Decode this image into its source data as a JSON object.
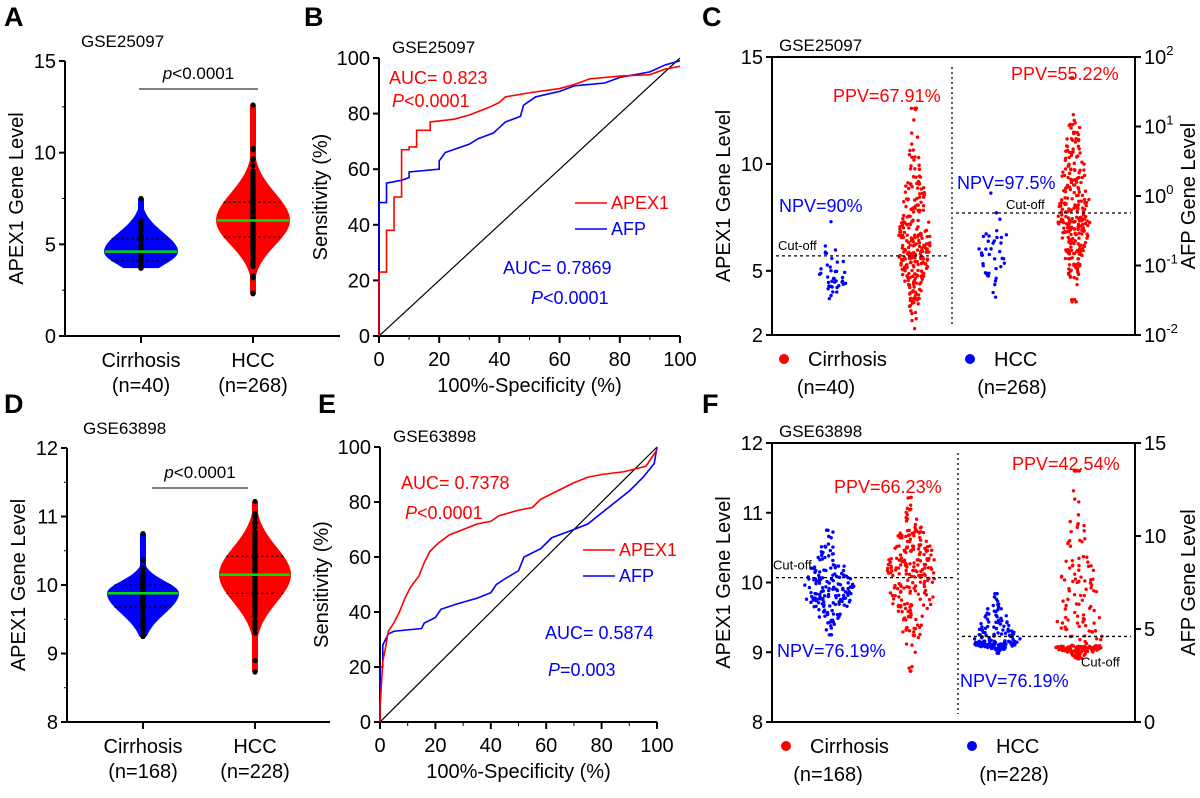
{
  "colors": {
    "red": "#ff0000",
    "blue": "#0000ff",
    "median": "#00e000",
    "black": "#000000"
  },
  "chart_data": [
    {
      "panel": "A",
      "type": "violin",
      "title": "GSE25097",
      "ylabel": "APEX1 Gene Level",
      "ylim": [
        0,
        15
      ],
      "yticks": [
        0,
        5,
        10,
        15
      ],
      "pvalue_label": "<0.0001",
      "pvalue_prefix": "p",
      "categories": [
        {
          "label": "Cirrhosis",
          "n_label": "(n=40)",
          "n": 40,
          "color": "#0000ff",
          "min": 3.7,
          "q1": 4.1,
          "median": 4.6,
          "q3": 5.3,
          "max": 7.5
        },
        {
          "label": "HCC",
          "n_label": "(n=268)",
          "n": 268,
          "color": "#ff0000",
          "min": 2.3,
          "q1": 5.4,
          "median": 6.3,
          "q3": 7.3,
          "max": 12.6
        }
      ]
    },
    {
      "panel": "B",
      "type": "line",
      "title": "GSE25097",
      "xlabel": "100%-Specificity (%)",
      "ylabel": "Sensitivity (%)",
      "xlim": [
        0,
        100
      ],
      "ylim": [
        0,
        100
      ],
      "xticks": [
        0,
        20,
        40,
        60,
        80,
        100
      ],
      "yticks": [
        0,
        20,
        40,
        60,
        80,
        100
      ],
      "legend": "right",
      "series": [
        {
          "name": "APEX1",
          "color": "#ff0000",
          "auc_label": "AUC= 0.823",
          "p_prefix": "P",
          "p_label": "<0.0001",
          "points": [
            [
              0,
              0
            ],
            [
              0,
              23
            ],
            [
              2.5,
              23
            ],
            [
              2.5,
              38
            ],
            [
              5,
              38
            ],
            [
              5,
              50
            ],
            [
              7.5,
              50
            ],
            [
              7.5,
              67
            ],
            [
              10,
              67
            ],
            [
              10,
              68
            ],
            [
              12.5,
              68
            ],
            [
              12.5,
              74
            ],
            [
              17,
              74
            ],
            [
              17,
              77
            ],
            [
              25,
              78
            ],
            [
              30,
              79.5
            ],
            [
              36,
              82
            ],
            [
              40,
              84
            ],
            [
              42,
              86
            ],
            [
              50,
              87.5
            ],
            [
              60,
              89
            ],
            [
              65,
              90.5
            ],
            [
              70,
              92.5
            ],
            [
              80,
              93.5
            ],
            [
              90,
              94
            ],
            [
              95,
              96
            ],
            [
              100,
              97
            ]
          ]
        },
        {
          "name": "AFP",
          "color": "#0000ff",
          "auc_label": "AUC= 0.7869",
          "p_prefix": "P",
          "p_label": "<0.0001",
          "points": [
            [
              0,
              0
            ],
            [
              0,
              48
            ],
            [
              2.5,
              48
            ],
            [
              2.5,
              55
            ],
            [
              7.5,
              56
            ],
            [
              10,
              57
            ],
            [
              10,
              59
            ],
            [
              20,
              60
            ],
            [
              20,
              63
            ],
            [
              22,
              66
            ],
            [
              30,
              69
            ],
            [
              33,
              71
            ],
            [
              38,
              73
            ],
            [
              42,
              77
            ],
            [
              47,
              79
            ],
            [
              48,
              83
            ],
            [
              52,
              86
            ],
            [
              60,
              88
            ],
            [
              65,
              90
            ],
            [
              75,
              91
            ],
            [
              80,
              93
            ],
            [
              90,
              95
            ],
            [
              95,
              97.5
            ],
            [
              100,
              99
            ]
          ]
        },
        {
          "name": "",
          "color": "#000000",
          "points": [
            [
              0,
              0
            ],
            [
              100,
              100
            ]
          ]
        }
      ]
    },
    {
      "panel": "C",
      "type": "scatter",
      "title": "GSE25097",
      "ylabel": "APEX1 Gene Level",
      "ylim": [
        2,
        15
      ],
      "yticks": [
        2,
        5,
        10,
        15
      ],
      "ylabel_right": "AFP Gene Level",
      "ylim_right": [
        0.01,
        100
      ],
      "yscale_right": "log",
      "yticks_right": [
        {
          "base": "10",
          "exp": "-2"
        },
        {
          "base": "10",
          "exp": "-1"
        },
        {
          "base": "10",
          "exp": "0"
        },
        {
          "base": "10",
          "exp": "1"
        },
        {
          "base": "10",
          "exp": "2"
        }
      ],
      "cutoff_label": "Cut-off",
      "left": {
        "cutoff": 5.7,
        "npv": "NPV=90%",
        "ppv": "PPV=67.91%",
        "groups": [
          {
            "color": "#0000ff",
            "n": 40,
            "min": 3.7,
            "median": 4.6,
            "max": 7.3
          },
          {
            "color": "#ff0000",
            "n": 268,
            "min": 2.3,
            "median": 6.2,
            "max": 12.6
          }
        ]
      },
      "right": {
        "cutoff": 0.57,
        "npv": "NPV=97.5%",
        "ppv": "PPV=55.22%",
        "groups": [
          {
            "color": "#0000ff",
            "n": 40,
            "min": 0.035,
            "median": 0.2,
            "max": 1.1
          },
          {
            "color": "#ff0000",
            "n": 268,
            "min": 0.03,
            "median": 0.5,
            "max": 50
          }
        ]
      },
      "legend": [
        {
          "label": "Cirrhosis",
          "n_label": "(n=40)",
          "color": "#ff0000"
        },
        {
          "label": "HCC",
          "n_label": "(n=268)",
          "color": "#0000ff"
        }
      ]
    },
    {
      "panel": "D",
      "type": "violin",
      "title": "GSE63898",
      "ylabel": "APEX1 Gene Level",
      "ylim": [
        8,
        12
      ],
      "yticks": [
        8,
        9,
        10,
        11,
        12
      ],
      "pvalue_label": "<0.0001",
      "pvalue_prefix": "p",
      "categories": [
        {
          "label": "Cirrhosis",
          "n_label": "(n=168)",
          "n": 168,
          "color": "#0000ff",
          "min": 9.25,
          "q1": 9.68,
          "median": 9.88,
          "q3": 10.0,
          "max": 10.75
        },
        {
          "label": "HCC",
          "n_label": "(n=228)",
          "n": 228,
          "color": "#ff0000",
          "min": 8.73,
          "q1": 9.88,
          "median": 10.15,
          "q3": 10.42,
          "max": 11.22
        }
      ]
    },
    {
      "panel": "E",
      "type": "line",
      "title": "GSE63898",
      "xlabel": "100%-Specificity (%)",
      "ylabel": "Sensitivity (%)",
      "xlim": [
        0,
        100
      ],
      "ylim": [
        0,
        100
      ],
      "xticks": [
        0,
        20,
        40,
        60,
        80,
        100
      ],
      "yticks": [
        0,
        20,
        40,
        60,
        80,
        100
      ],
      "legend": "right",
      "series": [
        {
          "name": "APEX1",
          "color": "#ff0000",
          "auc_label": "AUC= 0.7378",
          "p_prefix": "P",
          "p_label": "<0.0001",
          "points": [
            [
              0,
              0
            ],
            [
              0,
              5
            ],
            [
              0.6,
              15
            ],
            [
              1,
              22
            ],
            [
              2,
              27
            ],
            [
              3,
              33
            ],
            [
              5,
              36
            ],
            [
              7,
              40
            ],
            [
              9,
              45
            ],
            [
              11,
              49
            ],
            [
              14,
              53
            ],
            [
              16,
              58
            ],
            [
              18,
              62
            ],
            [
              21,
              65
            ],
            [
              25,
              68
            ],
            [
              30,
              70
            ],
            [
              35,
              72
            ],
            [
              40,
              73
            ],
            [
              43,
              75
            ],
            [
              50,
              77
            ],
            [
              55,
              78
            ],
            [
              58,
              81
            ],
            [
              62,
              83
            ],
            [
              66,
              85
            ],
            [
              70,
              87
            ],
            [
              75,
              89
            ],
            [
              80,
              90
            ],
            [
              88,
              91
            ],
            [
              92,
              92
            ],
            [
              96,
              93
            ],
            [
              100,
              99
            ]
          ]
        },
        {
          "name": "AFP",
          "color": "#0000ff",
          "auc_label": "AUC= 0.5874",
          "p_prefix": "P",
          "p_label": "=0.003",
          "points": [
            [
              0,
              0
            ],
            [
              0,
              20
            ],
            [
              1,
              20
            ],
            [
              1,
              28
            ],
            [
              3,
              32
            ],
            [
              5,
              33
            ],
            [
              15,
              34
            ],
            [
              16,
              36
            ],
            [
              20,
              38
            ],
            [
              22,
              41
            ],
            [
              28,
              43
            ],
            [
              35,
              45
            ],
            [
              40,
              47
            ],
            [
              42,
              50
            ],
            [
              45,
              52
            ],
            [
              50,
              55
            ],
            [
              52,
              60
            ],
            [
              58,
              63
            ],
            [
              62,
              67
            ],
            [
              70,
              70
            ],
            [
              75,
              72
            ],
            [
              80,
              76
            ],
            [
              85,
              80
            ],
            [
              90,
              84
            ],
            [
              95,
              89
            ],
            [
              99,
              94
            ],
            [
              100,
              100
            ]
          ]
        },
        {
          "name": "",
          "color": "#000000",
          "points": [
            [
              0,
              0
            ],
            [
              100,
              100
            ]
          ]
        }
      ]
    },
    {
      "panel": "F",
      "type": "scatter",
      "title": "GSE63898",
      "ylabel": "APEX1 Gene Level",
      "ylim": [
        8,
        12
      ],
      "yticks": [
        8,
        9,
        10,
        11,
        12
      ],
      "ylabel_right": "AFP Gene Level",
      "ylim_right": [
        0,
        15
      ],
      "yscale_right": "linear",
      "yticks_right": [
        {
          "base": "0"
        },
        {
          "base": "5"
        },
        {
          "base": "10"
        },
        {
          "base": "15"
        }
      ],
      "cutoff_label": "Cut-off",
      "left": {
        "cutoff": 10.07,
        "npv": "NPV=76.19%",
        "ppv": "PPV=66.23%",
        "groups": [
          {
            "color": "#0000ff",
            "n": 168,
            "min": 9.25,
            "median": 9.88,
            "max": 10.75
          },
          {
            "color": "#ff0000",
            "n": 228,
            "min": 8.73,
            "median": 10.15,
            "max": 11.22
          }
        ]
      },
      "right": {
        "cutoff": 4.6,
        "npv": "NPV=76.19%",
        "ppv": "PPV=42.54%",
        "groups": [
          {
            "color": "#0000ff",
            "n": 168,
            "min": 3.7,
            "median": 4.3,
            "max": 6.9
          },
          {
            "color": "#ff0000",
            "n": 228,
            "min": 3.4,
            "median": 4.1,
            "max": 13.5
          }
        ]
      },
      "legend": [
        {
          "label": "Cirrhosis",
          "n_label": "(n=168)",
          "color": "#ff0000"
        },
        {
          "label": "HCC",
          "n_label": "(n=228)",
          "color": "#0000ff"
        }
      ]
    }
  ],
  "panels": {
    "A": "A",
    "B": "B",
    "C": "C",
    "D": "D",
    "E": "E",
    "F": "F"
  }
}
